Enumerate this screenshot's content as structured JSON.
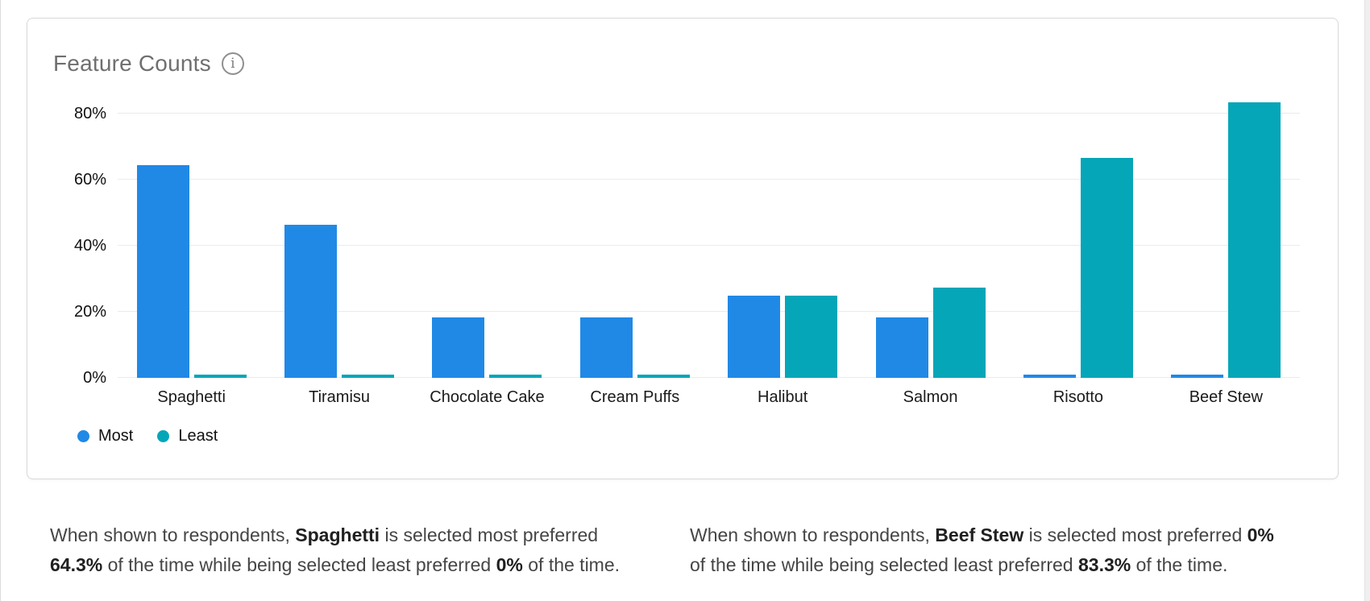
{
  "card": {
    "title": "Feature Counts",
    "info_glyph": "i"
  },
  "chart_data": {
    "type": "bar",
    "title": "Feature Counts",
    "categories": [
      "Spaghetti",
      "Tiramisu",
      "Chocolate Cake",
      "Cream Puffs",
      "Halibut",
      "Salmon",
      "Risotto",
      "Beef Stew"
    ],
    "series": [
      {
        "name": "Most",
        "color": "#2089E6",
        "values": [
          64.3,
          46.4,
          18.2,
          18.2,
          25,
          18.2,
          0,
          0
        ]
      },
      {
        "name": "Least",
        "color": "#05A6B8",
        "values": [
          0,
          0,
          0,
          0,
          25,
          27.3,
          66.7,
          83.3
        ]
      }
    ],
    "xlabel": "",
    "ylabel": "",
    "yticks": [
      0,
      20,
      40,
      60,
      80
    ],
    "ytick_labels": [
      "0%",
      "20%",
      "40%",
      "60%",
      "80%"
    ],
    "ylim": [
      0,
      86.8
    ],
    "grid": true,
    "legend_position": "bottom-left"
  },
  "footnotes": [
    {
      "segments": [
        {
          "text": "When shown to respondents, ",
          "bold": false
        },
        {
          "text": "Spaghetti",
          "bold": true
        },
        {
          "text": " is selected most preferred ",
          "bold": false
        },
        {
          "text": "64.3%",
          "bold": true
        },
        {
          "text": " of the time while being selected least preferred ",
          "bold": false
        },
        {
          "text": "0%",
          "bold": true
        },
        {
          "text": " of the time.",
          "bold": false
        }
      ]
    },
    {
      "segments": [
        {
          "text": "When shown to respondents, ",
          "bold": false
        },
        {
          "text": "Beef Stew",
          "bold": true
        },
        {
          "text": " is selected most preferred ",
          "bold": false
        },
        {
          "text": "0%",
          "bold": true
        },
        {
          "text": " of the time while being selected least preferred ",
          "bold": false
        },
        {
          "text": "83.3%",
          "bold": true
        },
        {
          "text": " of the time.",
          "bold": false
        }
      ]
    }
  ]
}
